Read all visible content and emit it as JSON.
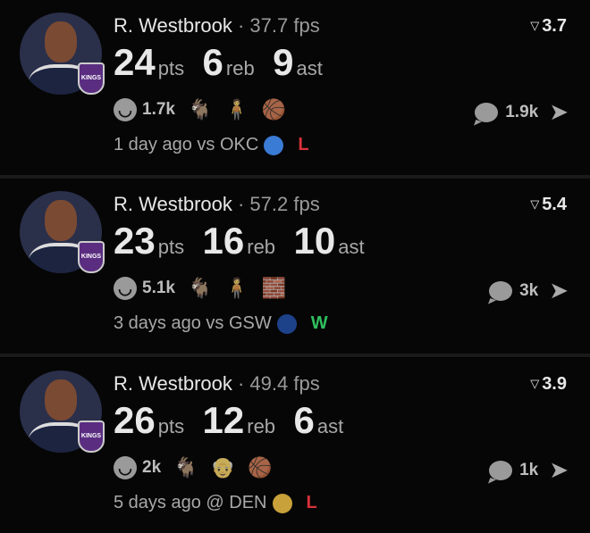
{
  "colors": {
    "loss": "#d7313a",
    "win": "#2fbf5f",
    "kings": "#5a2d81"
  },
  "games": [
    {
      "player": "R. Westbrook",
      "fps": "· 37.7 fps",
      "score": "3.7",
      "pts": "24",
      "reb": "6",
      "ast": "9",
      "pts_label": "pts",
      "reb_label": "reb",
      "ast_label": "ast",
      "team_badge": "KINGS",
      "likes": "1.7k",
      "reactions": [
        "🐐",
        "🧍",
        "🏀"
      ],
      "comments": "1.9k",
      "when": "1 day ago vs OKC",
      "opp_logo": "okc-logo",
      "opp_color": "#3a7bd5",
      "result": "L"
    },
    {
      "player": "R. Westbrook",
      "fps": "· 57.2 fps",
      "score": "5.4",
      "pts": "23",
      "reb": "16",
      "ast": "10",
      "pts_label": "pts",
      "reb_label": "reb",
      "ast_label": "ast",
      "team_badge": "KINGS",
      "likes": "5.1k",
      "reactions": [
        "🐐",
        "🧍",
        "🧱"
      ],
      "comments": "3k",
      "when": "3 days ago vs GSW",
      "opp_logo": "gsw-logo",
      "opp_color": "#1d428a",
      "result": "W"
    },
    {
      "player": "R. Westbrook",
      "fps": "· 49.4 fps",
      "score": "3.9",
      "pts": "26",
      "reb": "12",
      "ast": "6",
      "pts_label": "pts",
      "reb_label": "reb",
      "ast_label": "ast",
      "team_badge": "KINGS",
      "likes": "2k",
      "reactions": [
        "🐐",
        "👴",
        "🏀"
      ],
      "comments": "1k",
      "when": "5 days ago @ DEN",
      "opp_logo": "den-logo",
      "opp_color": "#c9a13a",
      "result": "L"
    }
  ]
}
